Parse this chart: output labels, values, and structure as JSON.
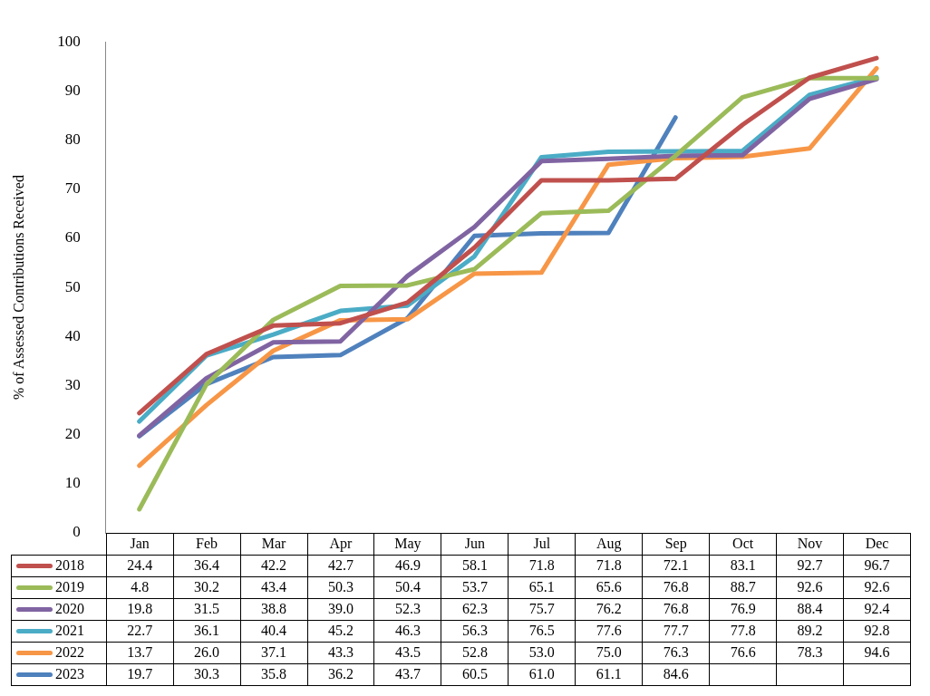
{
  "chart_data": {
    "type": "line",
    "ylabel": "% of Assessed Contributions Received",
    "categories": [
      "Jan",
      "Feb",
      "Mar",
      "Apr",
      "May",
      "Jun",
      "Jul",
      "Aug",
      "Sep",
      "Oct",
      "Nov",
      "Dec"
    ],
    "series": [
      {
        "name": "2018",
        "color": "#c0504d",
        "values": [
          24.4,
          36.4,
          42.2,
          42.7,
          46.9,
          58.1,
          71.8,
          71.8,
          72.1,
          83.1,
          92.7,
          96.7
        ],
        "value_labels": [
          "24.4",
          "36.4",
          "42.2",
          "42.7",
          "46.9",
          "58.1",
          "71.8",
          "71.8",
          "72.1",
          "83.1",
          "92.7",
          "96.7"
        ]
      },
      {
        "name": "2019",
        "color": "#9bbb59",
        "values": [
          4.8,
          30.2,
          43.4,
          50.3,
          50.4,
          53.7,
          65.1,
          65.6,
          76.8,
          88.7,
          92.6,
          92.6
        ],
        "value_labels": [
          "4.8",
          "30.2",
          "43.4",
          "50.3",
          "50.4",
          "53.7",
          "65.1",
          "65.6",
          "76.8",
          "88.7",
          "92.6",
          "92.6"
        ]
      },
      {
        "name": "2020",
        "color": "#8064a2",
        "values": [
          19.8,
          31.5,
          38.8,
          39.0,
          52.3,
          62.3,
          75.7,
          76.2,
          76.8,
          76.9,
          88.4,
          92.4
        ],
        "value_labels": [
          "19.8",
          "31.5",
          "38.8",
          "39.0",
          "52.3",
          "62.3",
          "75.7",
          "76.2",
          "76.8",
          "76.9",
          "88.4",
          "92.4"
        ]
      },
      {
        "name": "2021",
        "color": "#4bacc6",
        "values": [
          22.7,
          36.1,
          40.4,
          45.2,
          46.3,
          56.3,
          76.5,
          77.6,
          77.7,
          77.8,
          89.2,
          92.8
        ],
        "value_labels": [
          "22.7",
          "36.1",
          "40.4",
          "45.2",
          "46.3",
          "56.3",
          "76.5",
          "77.6",
          "77.7",
          "77.8",
          "89.2",
          "92.8"
        ]
      },
      {
        "name": "2022",
        "color": "#f79646",
        "values": [
          13.7,
          26.0,
          37.1,
          43.3,
          43.5,
          52.8,
          53.0,
          75.0,
          76.3,
          76.6,
          78.3,
          94.6
        ],
        "value_labels": [
          "13.7",
          "26.0",
          "37.1",
          "43.3",
          "43.5",
          "52.8",
          "53.0",
          "75.0",
          "76.3",
          "76.6",
          "78.3",
          "94.6"
        ]
      },
      {
        "name": "2023",
        "color": "#4f81bd",
        "values": [
          19.7,
          30.3,
          35.8,
          36.2,
          43.7,
          60.5,
          61.0,
          61.1,
          84.6,
          null,
          null,
          null
        ],
        "value_labels": [
          "19.7",
          "30.3",
          "35.8",
          "36.2",
          "43.7",
          "60.5",
          "61.0",
          "61.1",
          "84.6",
          null,
          null,
          null
        ]
      }
    ],
    "ylim": [
      0,
      100
    ],
    "yticks": [
      0,
      10,
      20,
      30,
      40,
      50,
      60,
      70,
      80,
      90,
      100
    ],
    "grid": false,
    "legend": "bottom",
    "marker": "none",
    "line_style": "solid"
  }
}
